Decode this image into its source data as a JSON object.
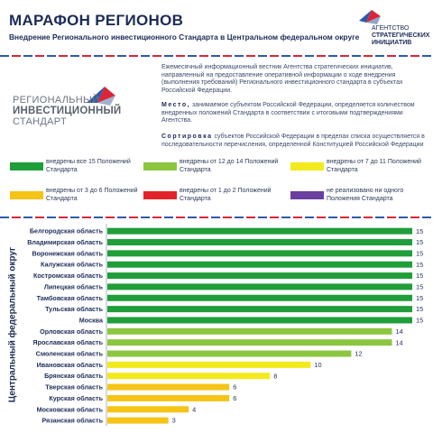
{
  "header": {
    "title": "МАРАФОН РЕГИОНОВ",
    "subtitle": "Внедрение Регионального инвестиционного Стандарта в Центральном федеральном округе"
  },
  "asi_logo": {
    "icon": "asi-flag-icon",
    "line1": "АГЕНТСТВО",
    "line2": "СТРАТЕГИЧЕСКИХ",
    "line3": "ИНИЦИАТИВ"
  },
  "standard_logo": {
    "icon": "standard-arrow-icon",
    "line1": "РЕГИОНАЛЬНЫЙ",
    "line2": "ИНВЕСТИЦИОННЫЙ",
    "line3": "СТАНДАРТ"
  },
  "description": {
    "intro": "Ежемесячный информационный вестник Агентства стратегических инициатив, направленный на предоставление оперативной информации о ходе внедрения (выполнения требований) Регионального инвестиционного стандарта в субъектах Российской Федерации.",
    "place_keyword": "Место,",
    "place_text": "занимаемое субъектом Российской Федерации, определяется количеством внедренных положений Стандарта в соответствии с итоговыми подтверждениями Агентства.",
    "sort_keyword": "Сортировка",
    "sort_text": "субъектов Российской Федерации в пределах списка осуществляется в последовательности перечисления, определенной Конституцией Российской Федерации"
  },
  "legend": [
    {
      "label": "внедрены все 15 Положений Стандарта",
      "color": "#1f9e3a"
    },
    {
      "label": "внедрены от 12 до 14 Положений Стандарта",
      "color": "#8cc63f"
    },
    {
      "label": "внедрены от 7 до 11 Положений Стандарта",
      "color": "#f2ea1c"
    },
    {
      "label": "внедрены от 3 до 6 Положений Стандарта",
      "color": "#f6c416"
    },
    {
      "label": "внедрены от 1 до 2 Положений Стандарта",
      "color": "#e3232b"
    },
    {
      "label": "не реализовано ни одного Положения Стандарта",
      "color": "#6b3fa0"
    }
  ],
  "chart_data": {
    "type": "bar",
    "orientation": "horizontal",
    "ylabel": "Центральный федеральный округ",
    "xlim": [
      0,
      15
    ],
    "grid": false,
    "categories": [
      "Белгородская область",
      "Владимирская область",
      "Воронежская область",
      "Калужская область",
      "Костромская область",
      "Липецкая область",
      "Тамбовская область",
      "Тульская область",
      "Москва",
      "Орловская область",
      "Ярославская область",
      "Смоленская область",
      "Ивановская область",
      "Брянская область",
      "Тверская область",
      "Курская область",
      "Московская область",
      "Рязанская область"
    ],
    "values": [
      15,
      15,
      15,
      15,
      15,
      15,
      15,
      15,
      15,
      14,
      14,
      12,
      10,
      8,
      6,
      6,
      4,
      3
    ],
    "colors": [
      "#1f9e3a",
      "#1f9e3a",
      "#1f9e3a",
      "#1f9e3a",
      "#1f9e3a",
      "#1f9e3a",
      "#1f9e3a",
      "#1f9e3a",
      "#1f9e3a",
      "#8cc63f",
      "#8cc63f",
      "#8cc63f",
      "#f2ea1c",
      "#f2ea1c",
      "#f6c416",
      "#f6c416",
      "#f6c416",
      "#f6c416"
    ]
  }
}
